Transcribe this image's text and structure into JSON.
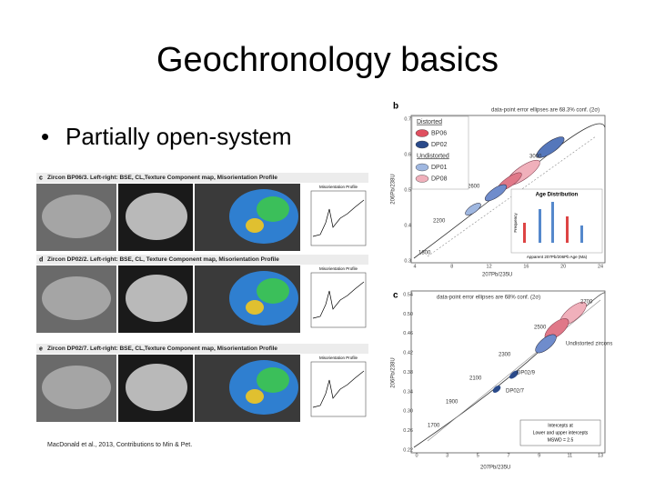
{
  "title": "Geochronology basics",
  "bullets": [
    "Partially open-system"
  ],
  "citation": "MacDonald et al., 2013, Contributions to Min & Pet.",
  "figure_left": {
    "panels": [
      {
        "label": "c",
        "caption": "Zircon BP06/3. Left-right: BSE, CL,Texture Component map, Misorientation Profile",
        "profile_title": "Misorientation Profile"
      },
      {
        "label": "d",
        "caption": "Zircon DP02/2. Left-right: BSE, CL, Texture Component map, Misorientation Profile",
        "profile_title": "Misorientation Profile"
      },
      {
        "label": "e",
        "caption": "Zircon DP02/7. Left-right: BSE, CL,Texture Component map, Misorientation Profile",
        "profile_title": "Misorientation Profile"
      }
    ]
  },
  "figure_b": {
    "label": "b",
    "note": "data-point error ellipses are 68.3% conf. (2σ)",
    "legend": [
      "Distorted",
      "BP06",
      "DP02",
      "Undistorted",
      "DP01",
      "DP08"
    ],
    "age_labels": [
      "3000",
      "2600",
      "2200",
      "1800"
    ],
    "inset_title": "Age Distribution",
    "inset_x_label": "Apparent 207Pb/206Pb Age (Ma)",
    "inset_y_label": "Frequency",
    "x_label": "207Pb/235U",
    "y_label": "206Pb/238U",
    "xticks": [
      "4",
      "8",
      "12",
      "16",
      "20",
      "24"
    ],
    "yticks": [
      "0.7",
      "0.6",
      "0.5",
      "0.4",
      "0.3"
    ]
  },
  "figure_c": {
    "label": "c",
    "note": "data-point error ellipses are 68% conf. (2σ)",
    "age_labels": [
      "2700",
      "2500",
      "2300",
      "2100",
      "1900",
      "1700"
    ],
    "annotations": [
      "Undistorted zircons",
      "DP02/9",
      "DP02/7"
    ],
    "box_lines": [
      "Intercepts at",
      "Lower and upper intercepts",
      "MSWD = 2.5"
    ],
    "x_label": "207Pb/235U",
    "y_label": "206Pb/238U",
    "xticks": [
      "0",
      "3",
      "5",
      "7",
      "9",
      "11",
      "13"
    ],
    "yticks": [
      "0.54",
      "0.50",
      "0.46",
      "0.42",
      "0.38",
      "0.34",
      "0.30",
      "0.26",
      "0.22"
    ]
  }
}
